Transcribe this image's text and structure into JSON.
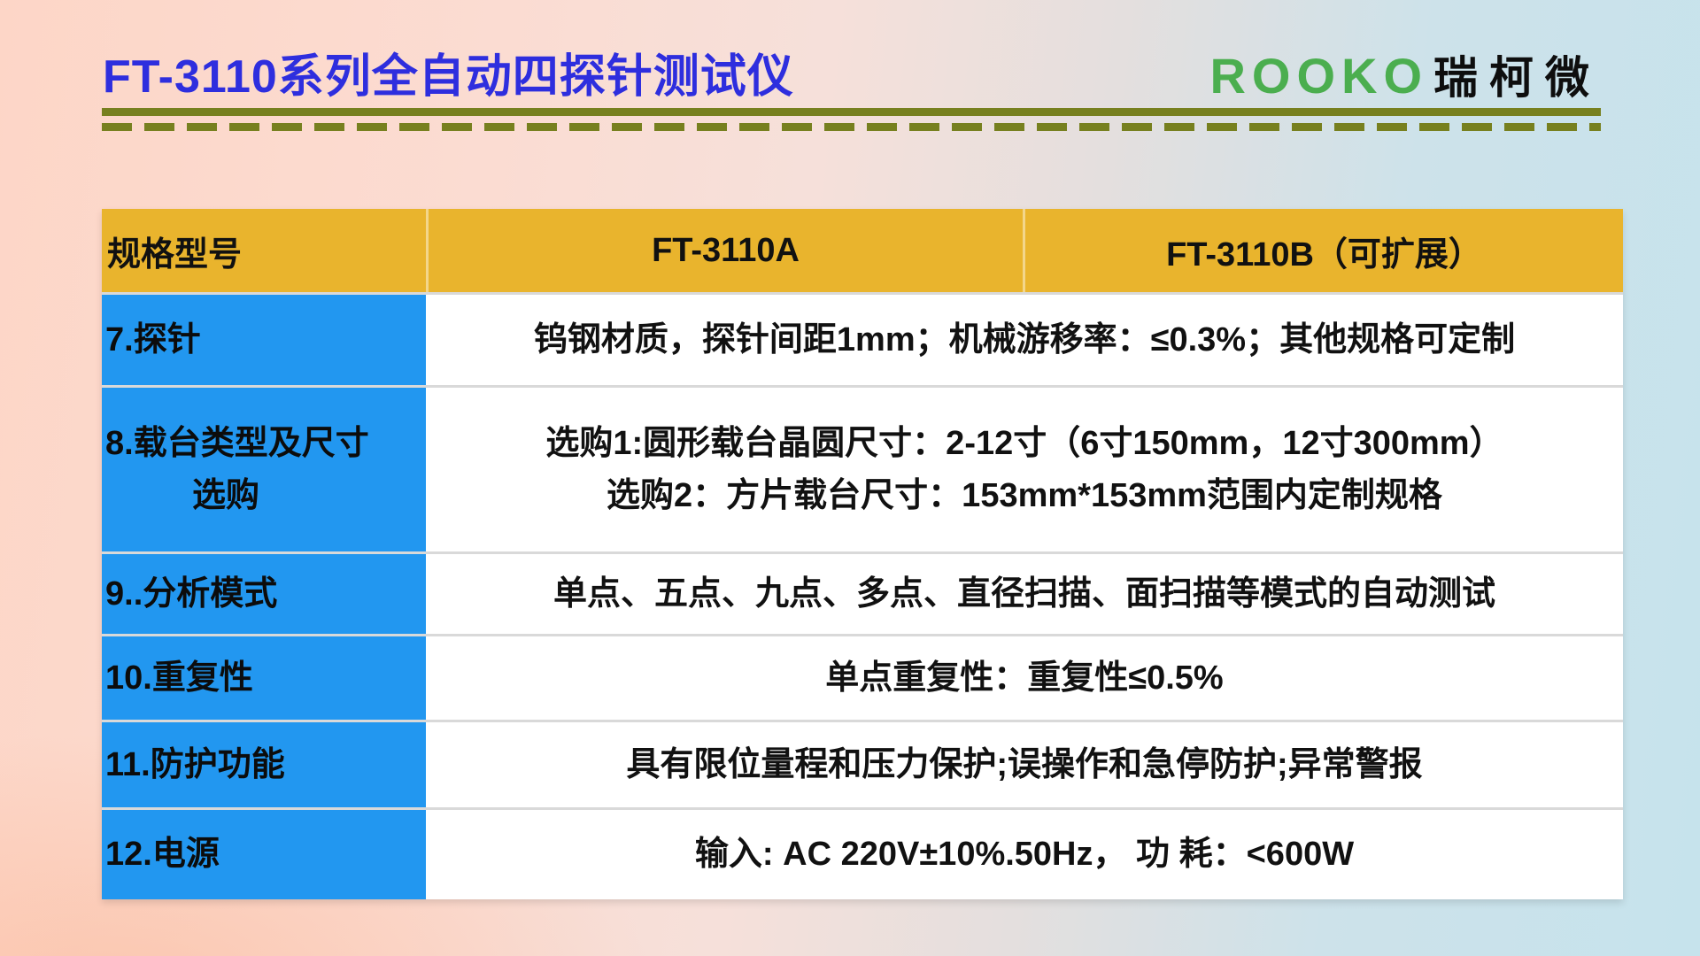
{
  "header": {
    "title": "FT-3110系列全自动四探针测试仪",
    "brand_latin": "ROOKO",
    "brand_cjk": "瑞柯微"
  },
  "colors": {
    "title_blue": "#2e2ede",
    "brand_green": "#4bae4f",
    "rule_olive": "#77801f",
    "header_gold": "#e9b42d",
    "label_blue": "#2297f0",
    "bg_left_pink": "#fdd6c7",
    "bg_right_blue": "#c6e3ec"
  },
  "table": {
    "header": [
      "规格型号",
      "FT-3110A",
      "FT-3110B（可扩展）"
    ],
    "rows": [
      {
        "label": "7.探针",
        "lines": [
          "钨钢材质，探针间距1mm；机械游移率：≤0.3%；其他规格可定制"
        ]
      },
      {
        "label": "8.载台类型及尺寸",
        "label2": "选购",
        "lines": [
          "选购1:圆形载台晶圆尺寸：2-12寸（6寸150mm，12寸300mm）",
          "选购2：方片载台尺寸：153mm*153mm范围内定制规格"
        ]
      },
      {
        "label": "9..分析模式",
        "lines": [
          "单点、五点、九点、多点、直径扫描、面扫描等模式的自动测试"
        ]
      },
      {
        "label": "10.重复性",
        "lines": [
          "单点重复性：重复性≤0.5%"
        ]
      },
      {
        "label": "11.防护功能",
        "lines": [
          "具有限位量程和压力保护;误操作和急停防护;异常警报"
        ]
      },
      {
        "label": "12.电源",
        "lines": [
          "输入: AC 220V±10%.50Hz， 功 耗：<600W"
        ]
      }
    ]
  }
}
